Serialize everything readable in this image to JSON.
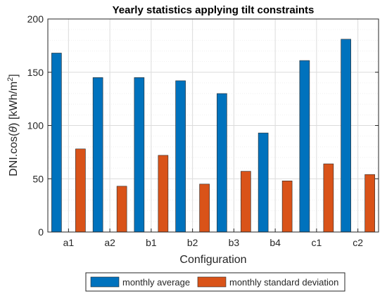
{
  "chart_data": {
    "type": "bar",
    "title": "Yearly statistics applying tilt constraints",
    "xlabel": "Configuration",
    "ylabel_prefix": "DNI.cos(",
    "ylabel_theta": "θ",
    "ylabel_mid": ") [kWh/m",
    "ylabel_sup": "2",
    "ylabel_suffix": "]",
    "ylim": [
      0,
      200
    ],
    "yticks": [
      0,
      50,
      100,
      150,
      200
    ],
    "grid": true,
    "legend_position": "bottom",
    "categories": [
      "a1",
      "a2",
      "b1",
      "b2",
      "b3",
      "b4",
      "c1",
      "c2"
    ],
    "series": [
      {
        "name": "monthly average",
        "color": "#0072BD",
        "values": [
          168,
          145,
          145,
          142,
          130,
          93,
          161,
          181
        ]
      },
      {
        "name": "monthly standard deviation",
        "color": "#D95319",
        "values": [
          78,
          43,
          72,
          45,
          57,
          48,
          64,
          54
        ]
      }
    ]
  }
}
